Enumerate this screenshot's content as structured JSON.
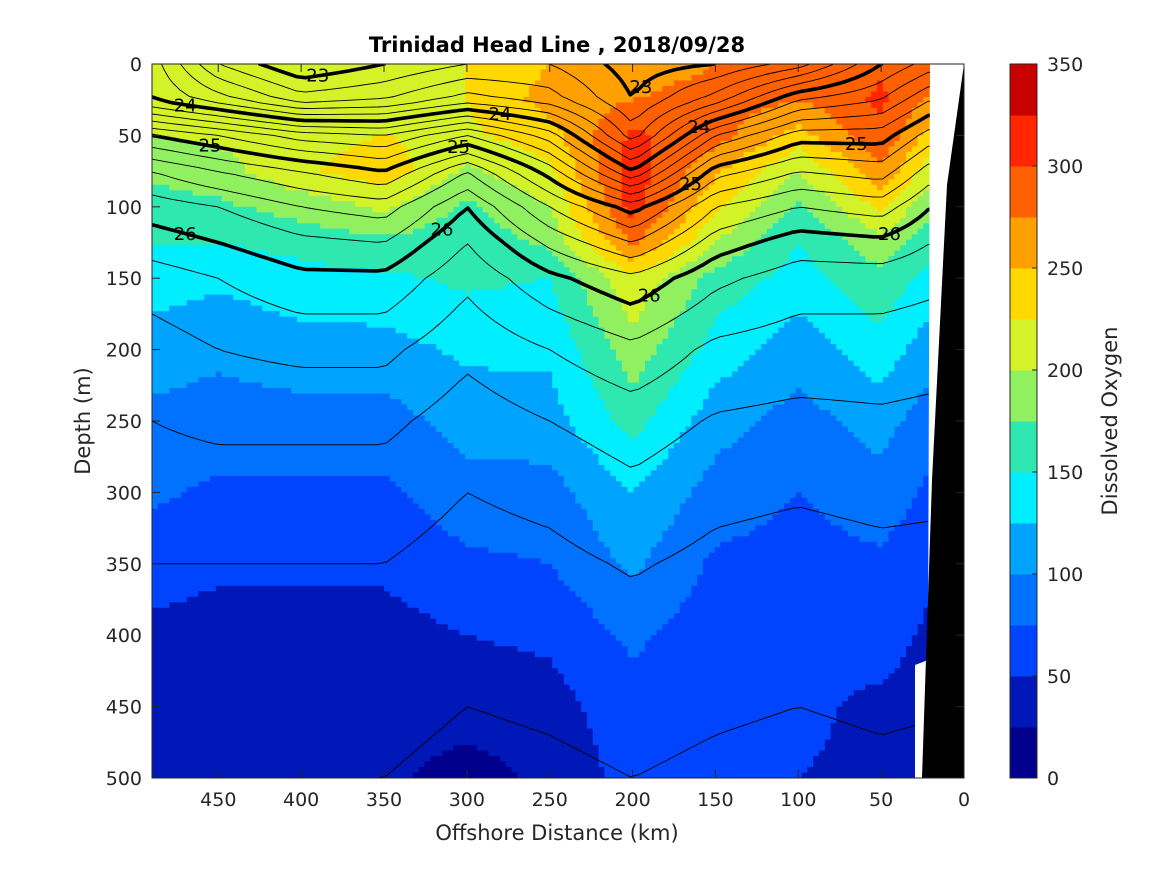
{
  "chart_data": {
    "type": "heatmap",
    "title": "Trinidad Head Line , 2018/09/28",
    "xlabel": "Offshore Distance (km)",
    "ylabel": "Depth (m)",
    "colorbar_label": "Dissolved Oxygen",
    "x_ticks": [
      450,
      400,
      350,
      300,
      250,
      200,
      150,
      100,
      50,
      0
    ],
    "y_ticks": [
      0,
      50,
      100,
      150,
      200,
      250,
      300,
      350,
      400,
      450,
      500
    ],
    "colorbar_ticks": [
      0,
      50,
      100,
      150,
      200,
      250,
      300,
      350
    ],
    "xlim": [
      490,
      0
    ],
    "ylim": [
      0,
      500
    ],
    "clim": [
      0,
      350
    ],
    "x_reversed": true,
    "y_reversed": true,
    "level_step": 25,
    "colors": [
      "#00008c",
      "#0018b8",
      "#0044ff",
      "#0072ff",
      "#00a4ff",
      "#00eeff",
      "#2ee8b0",
      "#90f060",
      "#d4f228",
      "#ffd800",
      "#ffa000",
      "#ff6000",
      "#ff2600",
      "#c80000"
    ],
    "isopycnal_labels": [
      "23",
      "24",
      "25",
      "26"
    ],
    "x_stations": [
      490,
      450,
      400,
      350,
      300,
      250,
      200,
      150,
      100,
      50,
      20
    ],
    "depths": [
      0,
      25,
      50,
      75,
      100,
      125,
      150,
      200,
      250,
      300,
      350,
      400,
      450,
      500
    ],
    "oxygen": [
      [
        205,
        205,
        200,
        180,
        165,
        150,
        140,
        110,
        95,
        80,
        60,
        45,
        40,
        35
      ],
      [
        205,
        205,
        205,
        190,
        170,
        150,
        130,
        105,
        90,
        70,
        55,
        40,
        35,
        28
      ],
      [
        210,
        210,
        215,
        220,
        185,
        160,
        140,
        115,
        90,
        70,
        55,
        40,
        35,
        28
      ],
      [
        205,
        210,
        225,
        240,
        205,
        170,
        145,
        115,
        90,
        70,
        55,
        40,
        35,
        30
      ],
      [
        225,
        225,
        220,
        195,
        170,
        160,
        155,
        130,
        110,
        90,
        70,
        50,
        35,
        15
      ],
      [
        250,
        260,
        240,
        220,
        200,
        180,
        150,
        130,
        115,
        90,
        75,
        55,
        40,
        30
      ],
      [
        255,
        275,
        305,
        315,
        310,
        280,
        220,
        190,
        160,
        125,
        105,
        80,
        65,
        60
      ],
      [
        275,
        290,
        285,
        255,
        230,
        200,
        165,
        140,
        110,
        90,
        70,
        60,
        55,
        55
      ],
      [
        285,
        275,
        240,
        200,
        170,
        150,
        140,
        110,
        90,
        75,
        65,
        55,
        55,
        50
      ],
      [
        295,
        305,
        295,
        270,
        230,
        190,
        170,
        140,
        110,
        90,
        70,
        60,
        45,
        45
      ],
      [
        285,
        270,
        240,
        210,
        180,
        160,
        140,
        110,
        85,
        70,
        55,
        45,
        40,
        40
      ]
    ],
    "sigma": [
      [
        23.9,
        24.0,
        25.0,
        25.6,
        25.9,
        26.1,
        26.3,
        26.5,
        26.6,
        26.7,
        26.8,
        26.9,
        26.95,
        27.0
      ],
      [
        23.2,
        23.7,
        24.8,
        25.4,
        25.8,
        26.0,
        26.2,
        26.4,
        26.55,
        26.7,
        26.8,
        26.9,
        26.95,
        27.0
      ],
      [
        22.8,
        23.3,
        24.5,
        25.2,
        25.6,
        25.85,
        26.05,
        26.35,
        26.55,
        26.7,
        26.8,
        26.88,
        26.95,
        27.0
      ],
      [
        23.0,
        23.4,
        24.4,
        25.0,
        25.5,
        25.8,
        26.05,
        26.35,
        26.55,
        26.7,
        26.8,
        26.9,
        26.95,
        27.0
      ],
      [
        23.2,
        23.7,
        24.8,
        25.6,
        26.0,
        26.2,
        26.35,
        26.55,
        26.7,
        26.8,
        26.88,
        26.95,
        27.0,
        27.05
      ],
      [
        23.2,
        23.5,
        24.3,
        24.9,
        25.4,
        25.75,
        26.05,
        26.4,
        26.6,
        26.75,
        26.85,
        26.93,
        26.98,
        27.03
      ],
      [
        22.9,
        23.0,
        23.3,
        24.0,
        24.9,
        25.4,
        25.85,
        26.25,
        26.5,
        26.65,
        26.78,
        26.88,
        26.95,
        27.0
      ],
      [
        23.0,
        23.5,
        24.4,
        25.1,
        25.6,
        25.9,
        26.15,
        26.45,
        26.62,
        26.75,
        26.85,
        26.93,
        26.98,
        27.03
      ],
      [
        23.3,
        24.2,
        24.9,
        25.4,
        25.8,
        26.1,
        26.3,
        26.5,
        26.65,
        26.78,
        26.88,
        26.95,
        27.0,
        27.05
      ],
      [
        24.0,
        24.4,
        24.9,
        25.3,
        25.7,
        26.05,
        26.3,
        26.5,
        26.63,
        26.75,
        26.85,
        26.93,
        26.98,
        27.03
      ],
      [
        24.3,
        24.8,
        25.3,
        25.7,
        26.0,
        26.2,
        26.35,
        26.52,
        26.65,
        26.76,
        26.86,
        26.94,
        26.99,
        27.04
      ]
    ]
  }
}
